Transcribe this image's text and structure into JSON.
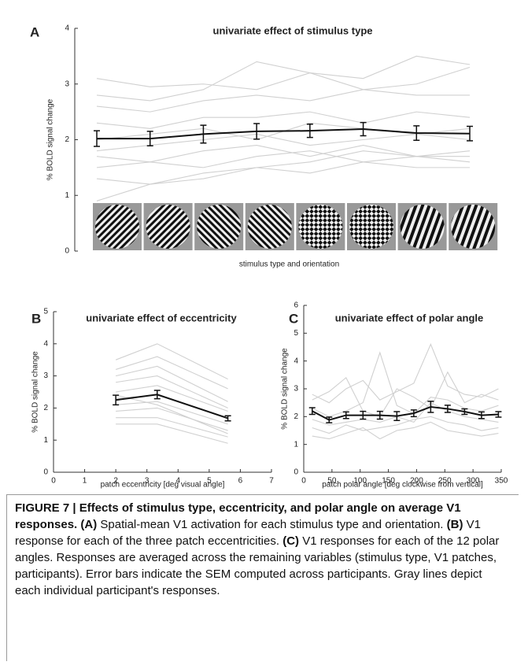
{
  "chart_data": [
    {
      "type": "line",
      "panel": "A",
      "title": "univariate effect of stimulus type",
      "xlabel": "stimulus type and orientation",
      "ylabel": "% BOLD signal change",
      "categories": [
        null,
        null,
        null,
        null,
        null,
        null,
        null,
        null
      ],
      "ylim": [
        0,
        4
      ],
      "yticks": [
        0,
        1,
        2,
        3,
        4
      ],
      "series": [
        {
          "color": "#d0d0d0",
          "values": [
            3.1,
            2.95,
            3.0,
            2.9,
            3.2,
            2.9,
            3.0,
            3.3
          ]
        },
        {
          "color": "#d0d0d0",
          "values": [
            2.8,
            2.7,
            2.9,
            3.4,
            3.2,
            3.1,
            3.5,
            3.35
          ]
        },
        {
          "color": "#d0d0d0",
          "values": [
            2.6,
            2.5,
            2.7,
            2.8,
            2.7,
            2.9,
            2.8,
            2.8
          ]
        },
        {
          "color": "#d0d0d0",
          "values": [
            2.3,
            2.2,
            2.4,
            2.4,
            2.5,
            2.3,
            2.5,
            2.4
          ]
        },
        {
          "color": "#d0d0d0",
          "values": [
            2.0,
            2.1,
            2.2,
            2.0,
            2.3,
            2.2,
            2.1,
            2.0
          ]
        },
        {
          "color": "#d0d0d0",
          "values": [
            1.8,
            1.9,
            2.0,
            2.1,
            1.9,
            2.0,
            2.1,
            2.2
          ]
        },
        {
          "color": "#d0d0d0",
          "values": [
            1.7,
            1.6,
            1.8,
            1.9,
            1.7,
            1.9,
            1.7,
            1.6
          ]
        },
        {
          "color": "#d0d0d0",
          "values": [
            1.5,
            1.6,
            1.5,
            1.7,
            1.8,
            1.6,
            1.7,
            1.8
          ]
        },
        {
          "color": "#d0d0d0",
          "values": [
            1.3,
            1.2,
            1.4,
            1.5,
            1.4,
            1.6,
            1.5,
            1.5
          ]
        },
        {
          "color": "#d0d0d0",
          "values": [
            0.9,
            1.2,
            1.3,
            1.5,
            1.6,
            1.8,
            1.7,
            1.7
          ]
        },
        {
          "color": "#111111",
          "values": [
            2.02,
            2.02,
            2.1,
            2.15,
            2.16,
            2.19,
            2.12,
            2.11
          ],
          "errors": [
            0.14,
            0.13,
            0.16,
            0.14,
            0.12,
            0.12,
            0.13,
            0.13
          ]
        }
      ]
    },
    {
      "type": "line",
      "panel": "B",
      "title": "univariate effect of eccentricity",
      "xlabel": "patch eccentricity [deg visual angle]",
      "ylabel": "% BOLD signal change",
      "x": [
        2,
        3.33,
        5.6
      ],
      "xlim": [
        0,
        7
      ],
      "xticks": [
        0,
        1,
        2,
        3,
        4,
        5,
        6,
        7
      ],
      "ylim": [
        0,
        5
      ],
      "yticks": [
        0,
        1,
        2,
        3,
        4,
        5
      ],
      "series": [
        {
          "color": "#d0d0d0",
          "values": [
            3.5,
            4.0,
            2.9
          ]
        },
        {
          "color": "#d0d0d0",
          "values": [
            3.2,
            3.6,
            2.6
          ]
        },
        {
          "color": "#d0d0d0",
          "values": [
            3.0,
            3.3,
            2.2
          ]
        },
        {
          "color": "#d0d0d0",
          "values": [
            2.8,
            3.0,
            2.0
          ]
        },
        {
          "color": "#d0d0d0",
          "values": [
            2.5,
            2.7,
            1.9
          ]
        },
        {
          "color": "#d0d0d0",
          "values": [
            2.3,
            2.4,
            1.7
          ]
        },
        {
          "color": "#d0d0d0",
          "values": [
            2.1,
            2.2,
            1.5
          ]
        },
        {
          "color": "#d0d0d0",
          "values": [
            1.9,
            2.0,
            1.3
          ]
        },
        {
          "color": "#d0d0d0",
          "values": [
            1.7,
            1.7,
            1.1
          ]
        },
        {
          "color": "#d0d0d0",
          "values": [
            1.5,
            1.5,
            0.9
          ]
        },
        {
          "color": "#d0d0d0",
          "values": [
            2.4,
            2.1,
            1.2
          ]
        },
        {
          "color": "#111111",
          "values": [
            2.25,
            2.42,
            1.68
          ],
          "errors": [
            0.15,
            0.13,
            0.08
          ]
        }
      ]
    },
    {
      "type": "line",
      "panel": "C",
      "title": "univariate effect of polar angle",
      "xlabel": "patch polar angle [deg clockwise from vertical]",
      "ylabel": "% BOLD signal change",
      "x": [
        15,
        45,
        75,
        105,
        135,
        165,
        195,
        225,
        255,
        285,
        315,
        345
      ],
      "xlim": [
        0,
        350
      ],
      "xticks": [
        0,
        50,
        100,
        150,
        200,
        250,
        300,
        350
      ],
      "ylim": [
        0,
        6
      ],
      "yticks": [
        0,
        1,
        2,
        3,
        4,
        5,
        6
      ],
      "series": [
        {
          "color": "#d0d0d0",
          "values": [
            2.8,
            2.5,
            3.0,
            3.3,
            2.6,
            2.9,
            3.2,
            4.6,
            3.1,
            2.8,
            2.7,
            3.0
          ]
        },
        {
          "color": "#d0d0d0",
          "values": [
            2.3,
            2.0,
            2.2,
            2.5,
            4.3,
            2.4,
            2.1,
            2.7,
            2.6,
            2.3,
            2.2,
            2.4
          ]
        },
        {
          "color": "#d0d0d0",
          "values": [
            1.9,
            1.7,
            1.8,
            1.9,
            1.8,
            2.0,
            1.8,
            2.5,
            2.2,
            2.0,
            1.9,
            1.8
          ]
        },
        {
          "color": "#d0d0d0",
          "values": [
            1.6,
            1.4,
            1.7,
            1.5,
            1.6,
            1.7,
            1.9,
            2.0,
            1.8,
            1.7,
            1.5,
            1.6
          ]
        },
        {
          "color": "#d0d0d0",
          "values": [
            1.3,
            1.2,
            1.4,
            1.6,
            1.2,
            1.5,
            1.6,
            1.8,
            1.5,
            1.4,
            1.3,
            1.4
          ]
        },
        {
          "color": "#d0d0d0",
          "values": [
            2.6,
            2.9,
            3.4,
            2.2,
            2.0,
            3.0,
            2.7,
            2.3,
            3.6,
            2.5,
            2.8,
            2.6
          ]
        },
        {
          "color": "#111111",
          "values": [
            2.2,
            1.88,
            2.05,
            2.05,
            2.05,
            2.02,
            2.12,
            2.35,
            2.28,
            2.18,
            2.05,
            2.08
          ],
          "errors": [
            0.12,
            0.1,
            0.12,
            0.14,
            0.14,
            0.16,
            0.12,
            0.2,
            0.13,
            0.1,
            0.12,
            0.1
          ]
        }
      ]
    }
  ],
  "caption": {
    "title": "FIGURE 7 | Effects of stimulus type, eccentricity, and polar angle on average V1 responses.",
    "parts": [
      {
        "label": "(A)",
        "text": "Spatial-mean V1 activation for each stimulus type and orientation."
      },
      {
        "label": "(B)",
        "text": "V1 response for each of the three patch eccentricities."
      },
      {
        "label": "(C)",
        "text": "V1 responses for each of the 12 polar angles. Responses are averaged across the remaining variables (stimulus type, V1 patches, participants). Error bars indicate the SEM computed across participants. Gray lines depict each individual participant's responses."
      }
    ]
  }
}
